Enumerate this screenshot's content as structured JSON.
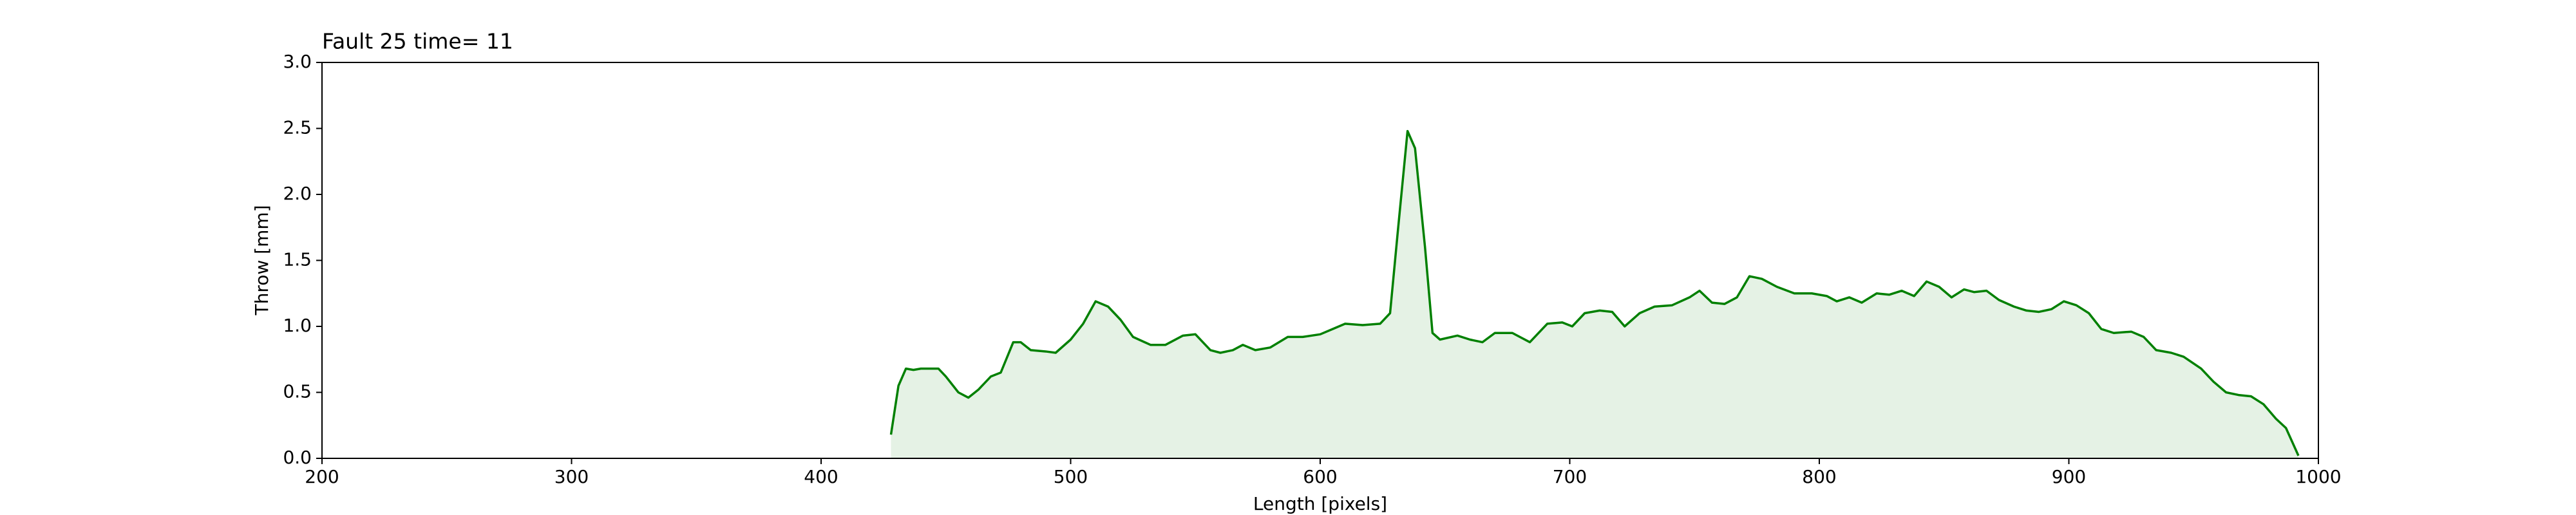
{
  "chart_data": {
    "type": "area",
    "title": "Fault 25 time= 11",
    "x_label": "Length [pixels]",
    "y_label": "Throw [mm]",
    "x": [
      428,
      431,
      434,
      437,
      440,
      447,
      450,
      455,
      459,
      463,
      468,
      472,
      477,
      480,
      484,
      490,
      494,
      500,
      505,
      510,
      515,
      520,
      525,
      532,
      538,
      545,
      550,
      556,
      560,
      565,
      569,
      574,
      580,
      587,
      593,
      600,
      605,
      610,
      617,
      624,
      628,
      631,
      635,
      638,
      642,
      645,
      648,
      655,
      660,
      665,
      670,
      677,
      684,
      691,
      697,
      701,
      706,
      712,
      717,
      722,
      728,
      734,
      741,
      748,
      752,
      757,
      762,
      767,
      772,
      777,
      783,
      790,
      797,
      803,
      807,
      812,
      817,
      823,
      828,
      833,
      838,
      843,
      848,
      853,
      858,
      862,
      867,
      872,
      878,
      883,
      888,
      893,
      898,
      903,
      908,
      913,
      918,
      925,
      930,
      935,
      941,
      946,
      953,
      958,
      963,
      968,
      973,
      978,
      983,
      987,
      992
    ],
    "values": [
      0.18,
      0.55,
      0.68,
      0.67,
      0.68,
      0.68,
      0.62,
      0.5,
      0.46,
      0.52,
      0.62,
      0.65,
      0.88,
      0.88,
      0.82,
      0.81,
      0.8,
      0.9,
      1.02,
      1.19,
      1.15,
      1.05,
      0.92,
      0.86,
      0.86,
      0.93,
      0.94,
      0.82,
      0.8,
      0.82,
      0.86,
      0.82,
      0.84,
      0.92,
      0.92,
      0.94,
      0.98,
      1.02,
      1.01,
      1.02,
      1.1,
      1.7,
      2.48,
      2.35,
      1.6,
      0.95,
      0.9,
      0.93,
      0.9,
      0.88,
      0.95,
      0.95,
      0.88,
      1.02,
      1.03,
      1.0,
      1.1,
      1.12,
      1.11,
      1.0,
      1.1,
      1.15,
      1.16,
      1.22,
      1.27,
      1.18,
      1.17,
      1.22,
      1.38,
      1.36,
      1.3,
      1.25,
      1.25,
      1.23,
      1.19,
      1.22,
      1.18,
      1.25,
      1.24,
      1.27,
      1.23,
      1.34,
      1.3,
      1.22,
      1.28,
      1.26,
      1.27,
      1.2,
      1.15,
      1.12,
      1.11,
      1.13,
      1.19,
      1.16,
      1.1,
      0.98,
      0.95,
      0.96,
      0.92,
      0.82,
      0.8,
      0.77,
      0.68,
      0.58,
      0.5,
      0.48,
      0.47,
      0.41,
      0.3,
      0.23,
      0.02
    ],
    "color": "#008000",
    "fill_color": "#e5f2e5",
    "xlim": [
      200,
      1000
    ],
    "xticks": [
      200,
      300,
      400,
      500,
      600,
      700,
      800,
      900,
      1000
    ],
    "ylim": [
      0,
      3
    ],
    "yticks": [
      {
        "value": 0,
        "label": "0.0"
      },
      0.5,
      {
        "value": 1,
        "label": "1.0"
      },
      1.5,
      {
        "value": 2,
        "label": "2.0"
      },
      2.5,
      {
        "value": 3,
        "label": "3.0"
      }
    ]
  }
}
